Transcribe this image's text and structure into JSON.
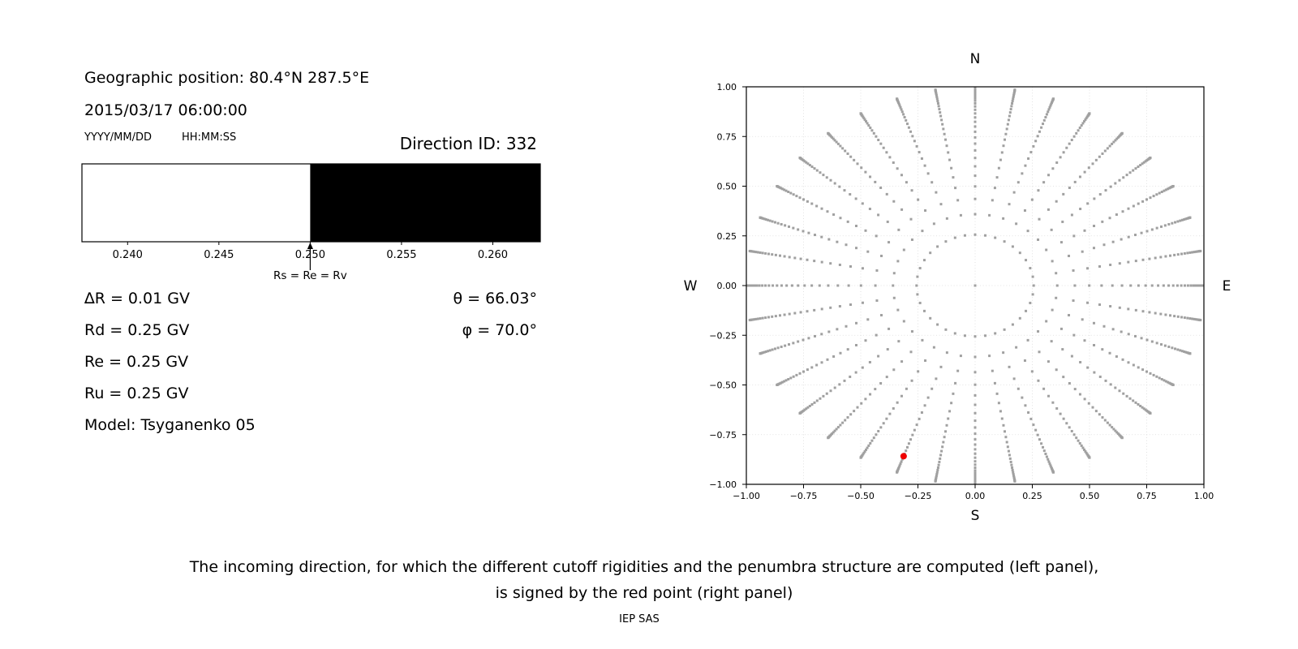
{
  "header": {
    "geographic_position": "Geographic position: 80.4°N 287.5°E",
    "datetime": "2015/03/17 06:00:00",
    "date_format_label": "YYYY/MM/DD",
    "time_format_label": "HH:MM:SS",
    "direction_id": "Direction ID: 332"
  },
  "parameters": {
    "left": [
      "∆R = 0.01 GV",
      "Rd = 0.25 GV",
      "Re = 0.25 GV",
      "Ru = 0.25 GV",
      "Model: Tsyganenko 05"
    ],
    "right": [
      "θ = 66.03°",
      "φ = 70.0°"
    ]
  },
  "caption": {
    "line1": "The incoming direction, for which the different cutoff rigidities and the penumbra structure are computed (left panel),",
    "line2": "is signed by the red point (right panel)",
    "credit": "IEP SAS"
  },
  "chart_data": [
    {
      "type": "heatmap",
      "name": "penumbra-structure",
      "description": "Cutoff rigidity penumbra band: white = allowed band below 0.250 GV, black = forbidden band above 0.250 GV",
      "xlim": [
        0.2375,
        0.2626
      ],
      "x_ticks": [
        0.24,
        0.245,
        0.25,
        0.255,
        0.26
      ],
      "x_tick_labels": [
        "0.240",
        "0.245",
        "0.250",
        "0.255",
        "0.260"
      ],
      "segments": [
        {
          "from": 0.2375,
          "to": 0.25,
          "color": "#ffffff"
        },
        {
          "from": 0.25,
          "to": 0.2626,
          "color": "#000000"
        }
      ],
      "annotation": {
        "x": 0.25,
        "label": "Rs = Re = Rv",
        "arrow": "up"
      },
      "border_color": "#000000",
      "grid": false
    },
    {
      "type": "scatter",
      "name": "incoming-direction-sky-map",
      "description": "Hemisphere grid of incoming directions projected on horizontal plane (r = sin(zenith)); spokes every 10° of azimuth, zenith steps uniform in cos(zenith); red point marks computed direction",
      "xlim": [
        -1.0,
        1.0
      ],
      "ylim": [
        -1.0,
        1.0
      ],
      "x_ticks": [
        -1.0,
        -0.75,
        -0.5,
        -0.25,
        0.0,
        0.25,
        0.5,
        0.75,
        1.0
      ],
      "x_tick_labels": [
        "−1.00",
        "−0.75",
        "−0.50",
        "−0.25",
        "0.00",
        "0.25",
        "0.50",
        "0.75",
        "1.00"
      ],
      "y_ticks": [
        1.0,
        0.75,
        0.5,
        0.25,
        0.0,
        -0.25,
        -0.5,
        -0.75,
        -1.0
      ],
      "y_tick_labels": [
        "1.00",
        "0.75",
        "0.50",
        "0.25",
        "0.00",
        "−0.25",
        "−0.50",
        "−0.75",
        "−1.00"
      ],
      "compass": {
        "top": "N",
        "bottom": "S",
        "left": "W",
        "right": "E"
      },
      "grid_points": {
        "n_azimuths": 36,
        "azimuth_step_deg": 10,
        "n_zenith_steps": 30,
        "zenith_distribution": "cos(zenith) = k/30, k = 0..30, r = sin(zenith)",
        "color": "#a0a0a0",
        "marker": "square",
        "marker_size_px": 3
      },
      "red_point": {
        "x": -0.3125,
        "y": -0.8586,
        "zenith_deg": 66.03,
        "azimuth_deg": 70.0,
        "color": "#f00000",
        "radius_px": 4
      },
      "grid": true,
      "grid_step": 0.25,
      "grid_color": "#cccccc"
    }
  ]
}
